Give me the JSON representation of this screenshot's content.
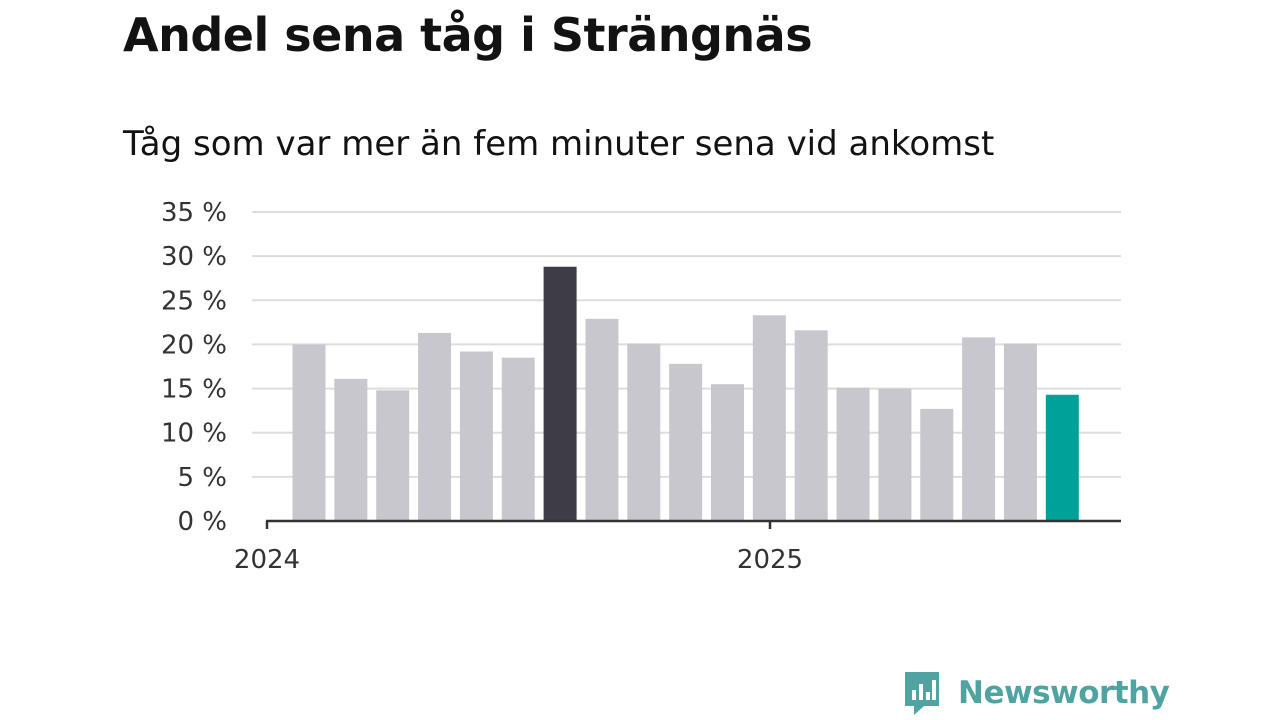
{
  "title": "Andel sena tåg i Strängnäs",
  "subtitle": "Tåg som var mer än fem minuter sena vid ankomst",
  "brand": {
    "name": "Newsworthy",
    "color": "#4fa3a0",
    "icon": "newsworthy-logo-icon"
  },
  "colors": {
    "bar_default": "#c8c7cd",
    "bar_highlight": "#3d3c47",
    "bar_latest": "#00a198",
    "grid": "#dddddd",
    "axis": "#333333"
  },
  "chart_data": {
    "type": "bar",
    "title": "Andel sena tåg i Strängnäs",
    "subtitle": "Tåg som var mer än fem minuter sena vid ankomst",
    "categories": [
      "2024-01",
      "2024-02",
      "2024-03",
      "2024-04",
      "2024-05",
      "2024-06",
      "2024-07",
      "2024-08",
      "2024-09",
      "2024-10",
      "2024-11",
      "2024-12",
      "2025-01",
      "2025-02",
      "2025-03",
      "2025-04",
      "2025-05",
      "2025-06",
      "2025-07"
    ],
    "values": [
      20.0,
      16.1,
      14.8,
      21.3,
      19.2,
      18.5,
      28.8,
      22.9,
      20.1,
      17.8,
      15.5,
      23.3,
      21.6,
      15.1,
      15.0,
      12.7,
      20.8,
      20.1,
      14.3
    ],
    "highlight_index": 6,
    "latest_index": 18,
    "ylim": [
      0,
      35
    ],
    "yticks": [
      0,
      5,
      10,
      15,
      20,
      25,
      30,
      35
    ],
    "ytick_labels": [
      "0 %",
      "5 %",
      "10 %",
      "15 %",
      "20 %",
      "25 %",
      "30 %",
      "35 %"
    ],
    "xticks": [
      {
        "label": "2024",
        "at": "2024-01"
      },
      {
        "label": "2025",
        "at": "2025-01"
      }
    ],
    "grid": true,
    "xlabel": "",
    "ylabel": ""
  }
}
